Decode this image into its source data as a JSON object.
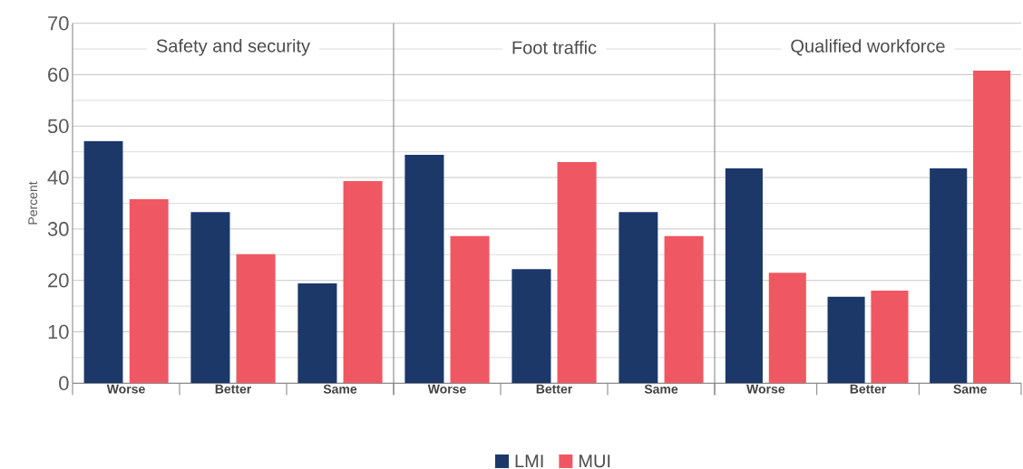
{
  "chart_data": [
    {
      "type": "bar",
      "title": "Safety and security",
      "ylabel": "Percent",
      "categories": [
        "Worse",
        "Better",
        "Same"
      ],
      "series": [
        {
          "color": "#1b3869",
          "values": [
            47.1,
            33.3,
            19.4
          ]
        },
        {
          "color": "#ef5862",
          "values": [
            35.8,
            25.1,
            39.3
          ]
        }
      ],
      "ylim": [
        0,
        70
      ],
      "yticks": [
        0,
        10,
        20,
        30,
        40,
        50,
        60,
        70
      ],
      "grid": "y"
    },
    {
      "type": "bar",
      "title": "Foot traffic",
      "categories": [
        "Worse",
        "Better",
        "Same"
      ],
      "series": [
        {
          "name": "LMI",
          "color": "#1b3869",
          "values": [
            44.4,
            22.2,
            33.3
          ]
        },
        {
          "name": "MUI",
          "color": "#ef5862",
          "values": [
            28.6,
            43.0,
            28.6
          ]
        }
      ],
      "ylim": [
        0,
        70
      ],
      "yticks": [
        0,
        10,
        20,
        30,
        40,
        50,
        60,
        70
      ],
      "grid": "y",
      "tick_labels": "x",
      "legend": "bottom"
    },
    {
      "type": "bar",
      "title": "Qualified workforce",
      "categories": [
        "Worse",
        "Better",
        "Same"
      ],
      "series": [
        {
          "color": "#1b3869",
          "values": [
            41.8,
            16.8,
            41.8
          ]
        },
        {
          "color": "#ef5862",
          "values": [
            21.5,
            18.0,
            60.8
          ]
        }
      ],
      "ylim": [
        0,
        70
      ],
      "yticks": [
        0,
        10,
        20,
        30,
        40,
        50,
        60,
        70
      ],
      "grid": "y",
      "tick_labels": "x"
    }
  ]
}
